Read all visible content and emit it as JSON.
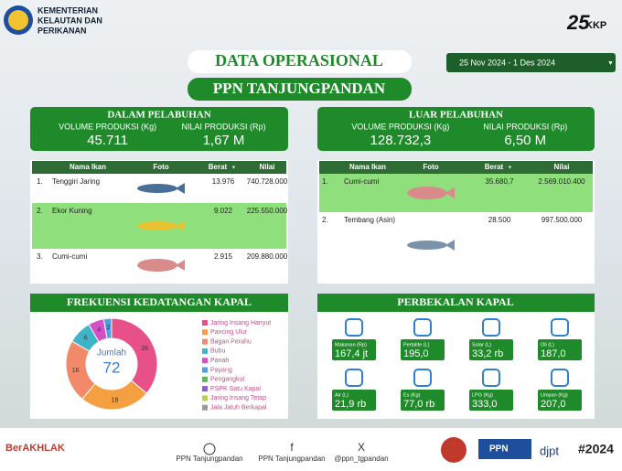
{
  "header": {
    "ministry": [
      "KEMENTERIAN",
      "KELAUTAN DAN",
      "PERIKANAN"
    ],
    "logo_right": "KKP",
    "title": "DATA OPERASIONAL",
    "subtitle": "PPN TANJUNGPANDAN",
    "date_range": "25 Nov 2024 - 1 Des 2024"
  },
  "summary": [
    {
      "title": "DALAM PELABUHAN",
      "volume_label": "VOLUME PRODUKSI (Kg)",
      "volume": "45.711",
      "value_label": "NILAI PRODUKSI (Rp)",
      "value": "1,67 M"
    },
    {
      "title": "LUAR PELABUHAN",
      "volume_label": "VOLUME PRODUKSI (Kg)",
      "volume": "128.732,3",
      "value_label": "NILAI PRODUKSI (Rp)",
      "value": "6,50 M"
    }
  ],
  "tables": [
    {
      "columns": [
        "Nama Ikan",
        "Foto",
        "Berat",
        "Nilai"
      ],
      "rows": [
        [
          "1.",
          "Tenggiri Jaring",
          "13.976",
          "740.728.000"
        ],
        [
          "2.",
          "Ekor Kuning",
          "9.022",
          "225.550.000"
        ],
        [
          "3.",
          "Cumi-cumi",
          "2.915",
          "209.880.000"
        ]
      ]
    },
    {
      "columns": [
        "Nama Ikan",
        "Foto",
        "Berat",
        "Nilai"
      ],
      "rows": [
        [
          "1.",
          "Cumi-cumi",
          "35.680,7",
          "2.569.010.400"
        ],
        [
          "2.",
          "Tembang (Asin)",
          "28.500",
          "997.500.000"
        ]
      ]
    }
  ],
  "frequency": {
    "title": "FREKUENSI KEDATANGAN KAPAL",
    "total_label": "Jumlah",
    "total": 72,
    "categories": [
      "Jaring Insang Hanyut",
      "Pancing Ulur",
      "Bagan Perahu",
      "Bubu",
      "Panah",
      "Payang",
      "Pengangkut",
      "PSPK Satu Kapal",
      "Jaring Insang Tetap",
      "Jala Jatuh Berkapal"
    ],
    "values": [
      26,
      18,
      16,
      6,
      4,
      2,
      0,
      0,
      0,
      0
    ],
    "colors": [
      "#e8508a",
      "#f5a040",
      "#f28a6a",
      "#3fb4c8",
      "#d44fc8",
      "#4f9fe0",
      "#5cb85c",
      "#8e5fd0",
      "#b8d04a",
      "#9a9a9a"
    ]
  },
  "supplies": {
    "title": "PERBEKALAN KAPAL",
    "items": [
      {
        "label": "Makanan (Rp)",
        "value": "167,4 jt"
      },
      {
        "label": "Pertalite (L)",
        "value": "195,0"
      },
      {
        "label": "Solar (L)",
        "value": "33,2 rb"
      },
      {
        "label": "Oli (L)",
        "value": "187,0"
      },
      {
        "label": "Air (L)",
        "value": "21,9 rb"
      },
      {
        "label": "Es (Kg)",
        "value": "77,0 rb"
      },
      {
        "label": "LPG (Kg)",
        "value": "333,0"
      },
      {
        "label": "Umpan (Kg)",
        "value": "207,0"
      }
    ]
  },
  "footer": {
    "berakhlak": "BerAKHLAK",
    "links": [
      "PPN Tanjungpandan",
      "PPN Tanjungpandan",
      "@ppn_tgpandan"
    ],
    "ppn": "PPN",
    "djpt": "djpt",
    "hashtag": "#2024"
  }
}
